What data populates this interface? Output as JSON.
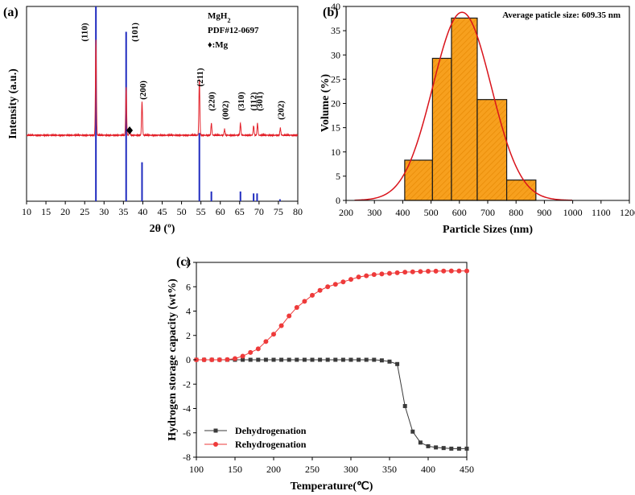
{
  "chart_data": [
    {
      "type": "line",
      "panel": "(a)",
      "xlabel": "2θ (º)",
      "ylabel": "Intensity (a.u.)",
      "xlim": [
        10,
        80
      ],
      "xticks": [
        10,
        15,
        20,
        25,
        30,
        35,
        40,
        45,
        50,
        55,
        60,
        65,
        70,
        75,
        80
      ],
      "legend_lines": [
        "MgH2",
        "PDF#12-0697",
        "♦:Mg"
      ],
      "pattern_peaks": [
        {
          "x": 27.9,
          "h": 0.8
        },
        {
          "x": 35.7,
          "h": 0.4
        },
        {
          "x": 36.6,
          "h": 0.06
        },
        {
          "x": 39.8,
          "h": 0.28
        },
        {
          "x": 54.6,
          "h": 0.47
        },
        {
          "x": 57.7,
          "h": 0.1
        },
        {
          "x": 61.1,
          "h": 0.05
        },
        {
          "x": 65.2,
          "h": 0.1
        },
        {
          "x": 68.6,
          "h": 0.08
        },
        {
          "x": 69.6,
          "h": 0.1
        },
        {
          "x": 75.5,
          "h": 0.06
        }
      ],
      "reference_lines": [
        {
          "x": 27.9,
          "h": 1.0
        },
        {
          "x": 35.7,
          "h": 0.87
        },
        {
          "x": 39.8,
          "h": 0.2
        },
        {
          "x": 54.6,
          "h": 0.35
        },
        {
          "x": 57.7,
          "h": 0.05
        },
        {
          "x": 65.2,
          "h": 0.05
        },
        {
          "x": 68.6,
          "h": 0.04
        },
        {
          "x": 69.5,
          "h": 0.04
        },
        {
          "x": 75.4,
          "h": 0.01
        }
      ],
      "peak_labels": [
        {
          "label": "(110)",
          "x": 24.9
        },
        {
          "label": "(101)",
          "x": 37.8
        },
        {
          "label": "(200)",
          "x": 39.9
        },
        {
          "label": "(211)",
          "x": 54.7
        },
        {
          "label": "(220)",
          "x": 57.7
        },
        {
          "label": "(002)",
          "x": 61.2
        },
        {
          "label": "(310)",
          "x": 65.3
        },
        {
          "label": "(112)",
          "x": 68.5
        },
        {
          "label": "(301)",
          "x": 70.0
        },
        {
          "label": "(202)",
          "x": 75.5
        }
      ],
      "mg_marker": {
        "symbol": "♦",
        "x": 36.6
      },
      "colors": {
        "pattern": "#e3212a",
        "reference": "#1f2bbf"
      }
    },
    {
      "type": "bar",
      "panel": "(b)",
      "xlabel": "Particle Sizes (nm)",
      "ylabel": "Volume (%)",
      "xlim": [
        200,
        1200
      ],
      "ylim": [
        0,
        40
      ],
      "xticks": [
        200,
        300,
        400,
        500,
        600,
        700,
        800,
        900,
        1000,
        1100,
        1200
      ],
      "yticks": [
        0,
        5,
        10,
        15,
        20,
        25,
        30,
        35,
        40
      ],
      "annotation": "Average paticle size: 609.35 nm",
      "bins": [
        {
          "x0": 407,
          "x1": 505,
          "value": 8.3
        },
        {
          "x0": 505,
          "x1": 572,
          "value": 29.3
        },
        {
          "x0": 572,
          "x1": 663,
          "value": 37.6
        },
        {
          "x0": 663,
          "x1": 767,
          "value": 20.8
        },
        {
          "x0": 767,
          "x1": 870,
          "value": 4.2
        }
      ],
      "fit": {
        "mean": 609.35,
        "sigma": 103,
        "peak": 38.8
      },
      "colors": {
        "bar": "#f7a01e",
        "edge": "#1a1a1a",
        "fit": "#d9131b"
      }
    },
    {
      "type": "line",
      "panel": "(c)",
      "xlabel": "Temperature(℃)",
      "ylabel": "Hydrogen storage capacity (wt%)",
      "xlim": [
        100,
        450
      ],
      "ylim": [
        -8,
        8
      ],
      "xticks": [
        100,
        150,
        200,
        250,
        300,
        350,
        400,
        450
      ],
      "yticks": [
        -8,
        -6,
        -4,
        -2,
        0,
        2,
        4,
        6,
        8
      ],
      "series": [
        {
          "name": "Dehydrogenation",
          "marker": "square",
          "color": "#3a3a3a",
          "x": [
            100,
            110,
            120,
            130,
            140,
            150,
            160,
            170,
            180,
            190,
            200,
            210,
            220,
            230,
            240,
            250,
            260,
            270,
            280,
            290,
            300,
            310,
            320,
            330,
            340,
            350,
            360,
            370,
            380,
            390,
            400,
            410,
            420,
            430,
            440,
            450
          ],
          "y": [
            0,
            0,
            0,
            0,
            0,
            0,
            0,
            0,
            0,
            0,
            0,
            0,
            0,
            0,
            0,
            0,
            0,
            0,
            0,
            0,
            0,
            0,
            0,
            0,
            -0.05,
            -0.15,
            -0.35,
            -3.8,
            -5.9,
            -6.8,
            -7.1,
            -7.2,
            -7.25,
            -7.3,
            -7.3,
            -7.3
          ]
        },
        {
          "name": "Rehydrogenation",
          "marker": "circle",
          "color": "#ee3a3a",
          "x": [
            100,
            110,
            120,
            130,
            140,
            150,
            160,
            170,
            180,
            190,
            200,
            210,
            220,
            230,
            240,
            250,
            260,
            270,
            280,
            290,
            300,
            310,
            320,
            330,
            340,
            350,
            360,
            370,
            380,
            390,
            400,
            410,
            420,
            430,
            440,
            450
          ],
          "y": [
            0,
            0,
            0,
            0,
            0.02,
            0.1,
            0.3,
            0.6,
            0.9,
            1.5,
            2.1,
            2.8,
            3.6,
            4.3,
            4.8,
            5.3,
            5.7,
            6.0,
            6.2,
            6.4,
            6.6,
            6.8,
            6.9,
            7.0,
            7.05,
            7.1,
            7.15,
            7.2,
            7.22,
            7.25,
            7.27,
            7.28,
            7.29,
            7.3,
            7.3,
            7.3
          ]
        }
      ]
    }
  ]
}
